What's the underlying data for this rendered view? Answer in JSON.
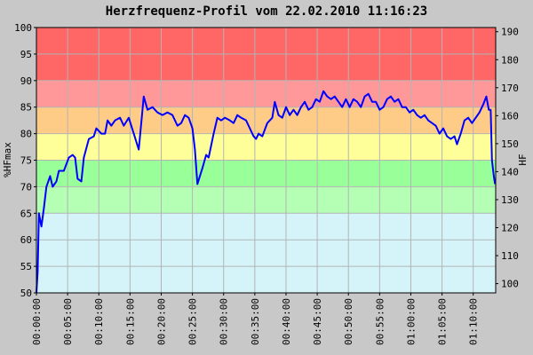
{
  "chart_data": {
    "type": "line",
    "title": "Herzfrequenz-Profil vom 22.02.2010 11:16:23",
    "ylabel": "%HFmax",
    "y2label": "HF",
    "color": "#0000ff",
    "grid": true,
    "bands": [
      {
        "from": 50,
        "to": 65,
        "color": "#d4f4fa"
      },
      {
        "from": 65,
        "to": 70,
        "color": "#b4ffb4"
      },
      {
        "from": 70,
        "to": 75,
        "color": "#99ff99"
      },
      {
        "from": 75,
        "to": 80,
        "color": "#ffff99"
      },
      {
        "from": 80,
        "to": 85,
        "color": "#ffcc88"
      },
      {
        "from": 85,
        "to": 90,
        "color": "#ff9999"
      },
      {
        "from": 90,
        "to": 100,
        "color": "#ff6666"
      }
    ],
    "xlim": [
      0,
      4416
    ],
    "xticks": [
      {
        "value": 0,
        "label": "00:00:00"
      },
      {
        "value": 300,
        "label": "00:05:00"
      },
      {
        "value": 600,
        "label": "00:10:00"
      },
      {
        "value": 900,
        "label": "00:15:00"
      },
      {
        "value": 1200,
        "label": "00:20:00"
      },
      {
        "value": 1500,
        "label": "00:25:00"
      },
      {
        "value": 1800,
        "label": "00:30:00"
      },
      {
        "value": 2100,
        "label": "00:35:00"
      },
      {
        "value": 2400,
        "label": "00:40:00"
      },
      {
        "value": 2700,
        "label": "00:45:00"
      },
      {
        "value": 3000,
        "label": "00:50:00"
      },
      {
        "value": 3300,
        "label": "00:55:00"
      },
      {
        "value": 3600,
        "label": "01:00:00"
      },
      {
        "value": 3900,
        "label": "01:05:00"
      },
      {
        "value": 4200,
        "label": "01:10:00"
      }
    ],
    "ylim": [
      50,
      100
    ],
    "yticks": [
      50,
      55,
      60,
      65,
      70,
      75,
      80,
      85,
      90,
      95,
      100
    ],
    "y2lim": [
      96.7,
      191.5
    ],
    "y2ticks": [
      100,
      110,
      120,
      130,
      140,
      150,
      160,
      170,
      180,
      190
    ],
    "x": [
      0,
      12,
      24,
      48,
      72,
      96,
      132,
      156,
      192,
      216,
      264,
      312,
      348,
      372,
      396,
      432,
      456,
      504,
      552,
      576,
      624,
      660,
      684,
      720,
      756,
      804,
      840,
      888,
      936,
      984,
      1008,
      1032,
      1068,
      1116,
      1164,
      1212,
      1260,
      1308,
      1356,
      1392,
      1428,
      1464,
      1500,
      1524,
      1548,
      1596,
      1632,
      1656,
      1704,
      1740,
      1776,
      1812,
      1860,
      1896,
      1932,
      1968,
      2016,
      2052,
      2088,
      2112,
      2136,
      2172,
      2220,
      2268,
      2292,
      2328,
      2364,
      2400,
      2436,
      2472,
      2508,
      2544,
      2580,
      2616,
      2652,
      2688,
      2724,
      2760,
      2796,
      2832,
      2868,
      2904,
      2940,
      2976,
      3012,
      3048,
      3084,
      3120,
      3156,
      3192,
      3228,
      3264,
      3300,
      3336,
      3372,
      3408,
      3444,
      3480,
      3516,
      3552,
      3588,
      3624,
      3660,
      3696,
      3732,
      3768,
      3804,
      3840,
      3876,
      3912,
      3948,
      3984,
      4020,
      4044,
      4080,
      4116,
      4152,
      4188,
      4224,
      4260,
      4296,
      4326,
      4350,
      4368,
      4380,
      4398,
      4410
    ],
    "values": [
      50,
      54,
      65,
      62.5,
      66,
      70,
      72,
      70,
      71,
      73,
      73,
      75.5,
      76,
      75.5,
      71.5,
      71,
      75.5,
      79,
      79.5,
      81,
      80,
      80,
      82.5,
      81.5,
      82.5,
      83,
      81.5,
      83,
      80,
      77,
      82,
      87,
      84.5,
      85,
      84,
      83.5,
      84,
      83.5,
      81.5,
      82,
      83.5,
      83,
      81,
      77,
      70.5,
      73.5,
      76,
      75.5,
      80,
      83,
      82.5,
      83,
      82.5,
      82,
      83.5,
      83,
      82.5,
      81,
      79.5,
      79,
      80,
      79.5,
      82,
      83,
      86,
      83.5,
      83,
      85,
      83.5,
      84.5,
      83.5,
      85,
      86,
      84.5,
      85,
      86.5,
      86,
      88,
      87,
      86.5,
      87,
      86,
      85,
      86.5,
      85,
      86.5,
      86,
      85,
      87,
      87.5,
      86,
      86,
      84.5,
      85,
      86.5,
      87,
      86,
      86.5,
      85,
      85,
      84,
      84.5,
      83.5,
      83,
      83.5,
      82.5,
      82,
      81.5,
      80,
      81,
      79.5,
      79,
      79.5,
      78,
      80,
      82.5,
      83,
      82,
      83,
      84,
      85.5,
      87,
      84.5,
      84.5,
      75,
      72,
      70.5
    ]
  }
}
